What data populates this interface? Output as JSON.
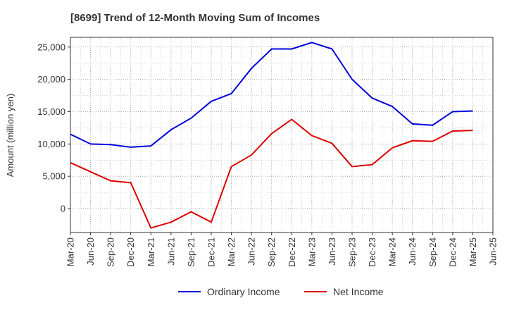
{
  "chart_data": {
    "type": "line",
    "title": "[8699]  Trend of 12-Month Moving Sum of Incomes",
    "xlabel": "",
    "ylabel": "Amount (million yen)",
    "x_tick_labels": [
      "Mar-20",
      "Jun-20",
      "Sep-20",
      "Dec-20",
      "Mar-21",
      "Jun-21",
      "Sep-21",
      "Dec-21",
      "Mar-22",
      "Jun-22",
      "Sep-22",
      "Dec-22",
      "Mar-23",
      "Jun-23",
      "Sep-23",
      "Dec-23",
      "Mar-24",
      "Jun-24",
      "Sep-24",
      "Dec-24",
      "Mar-25",
      "Jun-25"
    ],
    "y_ticks": [
      0,
      5000,
      10000,
      15000,
      20000,
      25000
    ],
    "y_tick_labels": [
      "0",
      "5,000",
      "10,000",
      "15,000",
      "20,000",
      "25,000"
    ],
    "ylim": [
      -3700,
      26500
    ],
    "grid": true,
    "legend_position": "bottom-center",
    "series": [
      {
        "name": "Ordinary Income",
        "color": "#0000dd",
        "values": [
          11500,
          10000,
          9900,
          9500,
          9700,
          12200,
          14000,
          16600,
          17800,
          21700,
          24700,
          24700,
          25700,
          24700,
          20000,
          17100,
          15800,
          13100,
          12900,
          15000,
          15100,
          null
        ]
      },
      {
        "name": "Net Income",
        "color": "#dd0000",
        "values": [
          7100,
          5700,
          4300,
          4000,
          -3000,
          -2100,
          -500,
          -2100,
          6500,
          8300,
          11600,
          13800,
          11300,
          10100,
          6500,
          6800,
          9400,
          10500,
          10400,
          12000,
          12100,
          null
        ]
      }
    ]
  }
}
